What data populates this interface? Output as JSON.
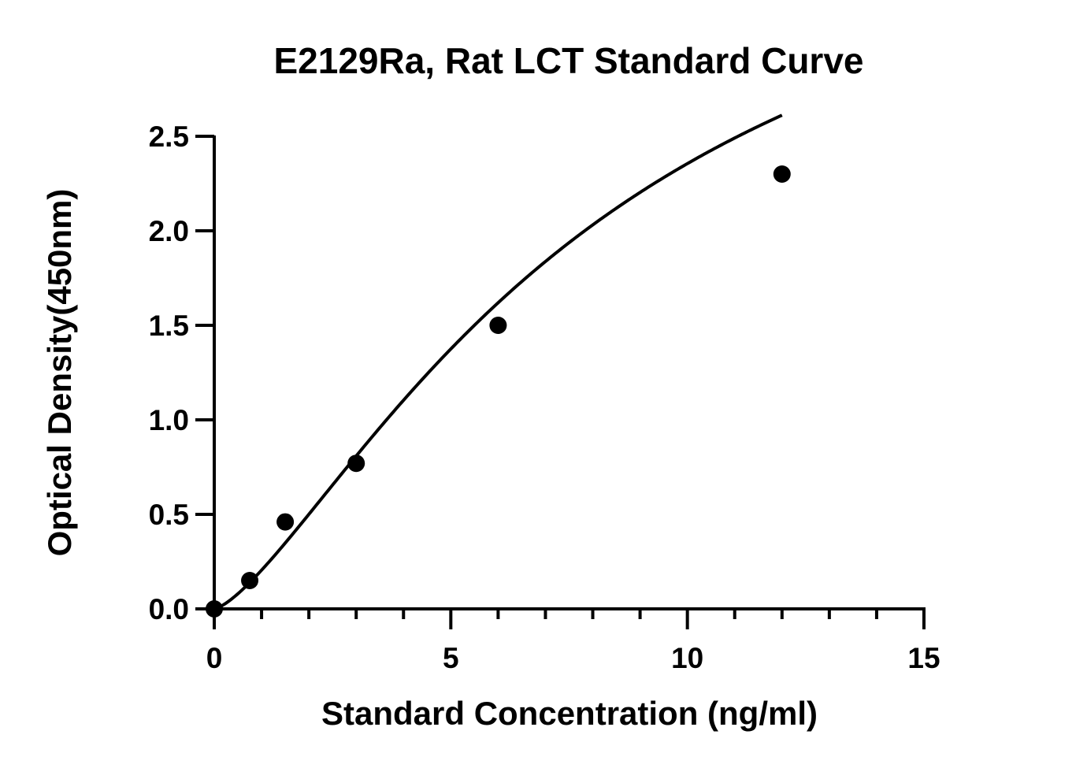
{
  "chart_data": {
    "type": "scatter",
    "title": "E2129Ra, Rat LCT Standard Curve",
    "xlabel": "Standard Concentration (ng/ml)",
    "ylabel": "Optical Density(450nm)",
    "xlim": [
      0,
      15
    ],
    "ylim": [
      0,
      2.5
    ],
    "x_ticks": [
      0,
      5,
      10,
      15
    ],
    "x_tick_labels": [
      "0",
      "5",
      "10",
      "15"
    ],
    "x_minor_step": 1,
    "y_ticks": [
      0,
      0.5,
      1.0,
      1.5,
      2.0,
      2.5
    ],
    "y_tick_labels": [
      "0.0",
      "0.5",
      "1.0",
      "1.5",
      "2.0",
      "2.5"
    ],
    "grid": false,
    "legend": "none",
    "series": [
      {
        "x": [
          0,
          0.75,
          1.5,
          3,
          6,
          12
        ],
        "y": [
          0.0,
          0.15,
          0.46,
          0.77,
          1.5,
          2.3
        ],
        "fit": "four-parameter logistic",
        "color": "#000000"
      }
    ]
  }
}
